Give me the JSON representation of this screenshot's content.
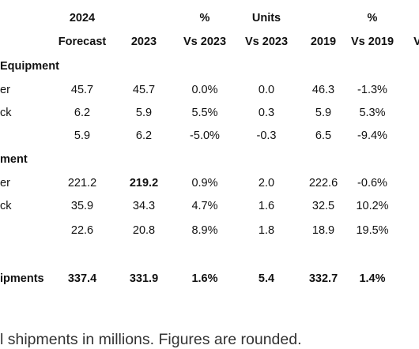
{
  "header": {
    "row1": {
      "col_2024": "2024",
      "col_pct_2023": "%",
      "col_units": "Units",
      "col_pct_2019": "%"
    },
    "row2": {
      "forecast": "Forecast",
      "y2023": "2023",
      "vs2023": "Vs 2023",
      "units_vs2023": "Vs 2023",
      "y2019": "2019",
      "vs2019": "Vs 2019",
      "edge": "V"
    }
  },
  "sections": [
    {
      "title": "Equipment",
      "rows": [
        {
          "label": "er",
          "forecast": "45.7",
          "y2023": "45.7",
          "vs2023": "0.0%",
          "units": "0.0",
          "y2019": "46.3",
          "vs2019": "-1.3%"
        },
        {
          "label": "ck",
          "forecast": "6.2",
          "y2023": "5.9",
          "vs2023": "5.5%",
          "units": "0.3",
          "y2019": "5.9",
          "vs2019": "5.3%"
        },
        {
          "label": "",
          "forecast": "5.9",
          "y2023": "6.2",
          "vs2023": "-5.0%",
          "units": "-0.3",
          "y2019": "6.5",
          "vs2019": "-9.4%"
        }
      ]
    },
    {
      "title": "ment",
      "rows": [
        {
          "label": "er",
          "forecast": "221.2",
          "y2023": "219.2",
          "vs2023": "0.9%",
          "units": "2.0",
          "y2019": "222.6",
          "vs2019": "-0.6%"
        },
        {
          "label": "ck",
          "forecast": "35.9",
          "y2023": "34.3",
          "vs2023": "4.7%",
          "units": "1.6",
          "y2019": "32.5",
          "vs2019": "10.2%"
        },
        {
          "label": "",
          "forecast": "22.6",
          "y2023": "20.8",
          "vs2023": "8.9%",
          "units": "1.8",
          "y2019": "18.9",
          "vs2019": "19.5%"
        }
      ]
    }
  ],
  "total": {
    "label": "ipments",
    "forecast": "337.4",
    "y2023": "331.9",
    "vs2023": "1.6%",
    "units": "5.4",
    "y2019": "332.7",
    "vs2019": "1.4%"
  },
  "footnote": "l shipments in millions. Figures are rounded."
}
